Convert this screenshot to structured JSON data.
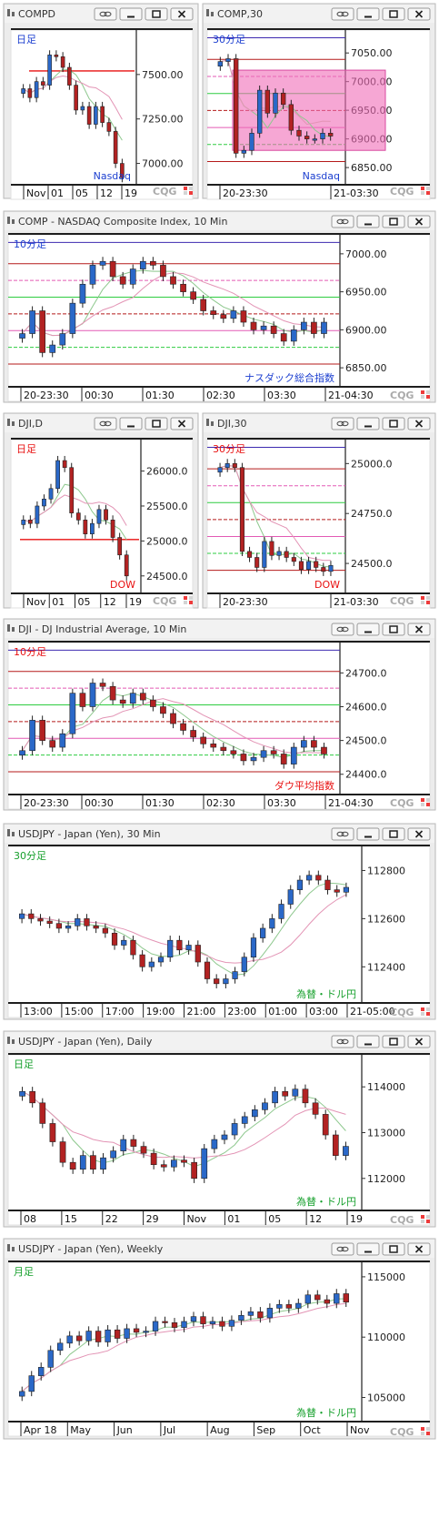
{
  "icons": {
    "link": "link-icon",
    "minimize": "minimize-icon",
    "maximize": "maximize-icon",
    "close": "close-icon"
  },
  "colors": {
    "up": "#2a68c8",
    "down": "#b22222",
    "frame": "#1e1e1e",
    "titlebar": "#ececec",
    "accent_blue": "#1c3fd0",
    "accent_red": "#e81010",
    "accent_green": "#17a02d",
    "zone_pink": "#f06cb8"
  },
  "footer_brand": "CQG",
  "windows": [
    {
      "title": "COMPD",
      "period_label": "日足",
      "name_label": "Nasdaq",
      "label_color": "#1c3fd0",
      "price_ticks": [
        "7500.00",
        "7250.00",
        "7000.00"
      ],
      "x_ticks": [
        "Nov",
        "01",
        "05",
        "12",
        "19"
      ],
      "chart_data": {
        "type": "candlestick",
        "ylim": [
          6880,
          7750
        ],
        "close": [
          7420,
          7370,
          7460,
          7440,
          7610,
          7600,
          7540,
          7440,
          7300,
          7320,
          7220,
          7320,
          7230,
          7180,
          7000,
          6920
        ]
      }
    },
    {
      "title": "COMP,30",
      "period_label": "30分足",
      "name_label": "Nasdaq",
      "label_color": "#1c3fd0",
      "price_ticks": [
        "7050.00",
        "7000.00",
        "6950.00",
        "6900.00",
        "6850.00"
      ],
      "x_ticks": [
        "20-23:30",
        "21-03:30"
      ],
      "chart_data": {
        "type": "candlestick",
        "ylim": [
          6820,
          7090
        ],
        "close": [
          7035,
          7040,
          6875,
          6880,
          6910,
          6985,
          6945,
          6980,
          6960,
          6915,
          6905,
          6900,
          6900,
          6910,
          6905
        ]
      }
    },
    {
      "title": "COMP - NASDAQ Composite Index, 10 Min",
      "period_label": "10分足",
      "name_label": "ナスダック総合指数",
      "label_color": "#1c3fd0",
      "price_ticks": [
        "7000.00",
        "6950.00",
        "6900.00",
        "6850.00"
      ],
      "x_ticks": [
        "20-23:30",
        "00:30",
        "01:30",
        "02:30",
        "03:30",
        "21-04:30"
      ],
      "chart_data": {
        "type": "candlestick",
        "ylim": [
          6825,
          7025
        ],
        "close": [
          6895,
          6925,
          6870,
          6880,
          6895,
          6935,
          6960,
          6985,
          6990,
          6970,
          6960,
          6980,
          6990,
          6985,
          6970,
          6960,
          6950,
          6940,
          6925,
          6920,
          6915,
          6925,
          6910,
          6900,
          6905,
          6895,
          6885,
          6900,
          6910,
          6895,
          6910
        ]
      }
    },
    {
      "title": "DJI,D",
      "period_label": "日足",
      "name_label": "DOW",
      "label_color": "#e81010",
      "price_ticks": [
        "26000.0",
        "25500.0",
        "25000.0",
        "24500.0"
      ],
      "x_ticks": [
        "Nov",
        "01",
        "05",
        "12",
        "19"
      ],
      "chart_data": {
        "type": "candlestick",
        "ylim": [
          24250,
          26450
        ],
        "close": [
          25300,
          25250,
          25500,
          25600,
          25750,
          26150,
          26050,
          25400,
          25300,
          25100,
          25250,
          25450,
          25300,
          25050,
          24800,
          24500
        ]
      }
    },
    {
      "title": "DJI,30",
      "period_label": "30分足",
      "name_label": "DOW",
      "label_color": "#e81010",
      "price_ticks": [
        "25000.0",
        "24750.0",
        "24500.0"
      ],
      "x_ticks": [
        "20-23:30",
        "21-03:30"
      ],
      "chart_data": {
        "type": "candlestick",
        "ylim": [
          24350,
          25120
        ],
        "close": [
          24980,
          25000,
          24980,
          24560,
          24530,
          24480,
          24610,
          24540,
          24560,
          24530,
          24510,
          24470,
          24510,
          24480,
          24460,
          24490
        ]
      }
    },
    {
      "title": "DJI - DJ Industrial Average, 10 Min",
      "period_label": "10分足",
      "name_label": "ダウ平均指数",
      "label_color": "#e81010",
      "price_ticks": [
        "24700.0",
        "24600.0",
        "24500.0",
        "24400.0"
      ],
      "x_ticks": [
        "20-23:30",
        "00:30",
        "01:30",
        "02:30",
        "03:30",
        "21-04:30"
      ],
      "chart_data": {
        "type": "candlestick",
        "ylim": [
          24340,
          24790
        ],
        "close": [
          24470,
          24560,
          24500,
          24480,
          24520,
          24640,
          24600,
          24670,
          24660,
          24620,
          24610,
          24640,
          24620,
          24600,
          24580,
          24550,
          24530,
          24510,
          24490,
          24480,
          24470,
          24460,
          24440,
          24450,
          24470,
          24460,
          24430,
          24480,
          24500,
          24480,
          24460
        ]
      }
    },
    {
      "title": "USDJPY - Japan (Yen), 30 Min",
      "period_label": "30分足",
      "name_label": "為替・ドル円",
      "label_color": "#17a02d",
      "price_ticks": [
        "112800",
        "112600",
        "112400"
      ],
      "x_ticks": [
        "13:00",
        "15:00",
        "17:00",
        "19:00",
        "21:00",
        "23:00",
        "01:00",
        "03:00",
        "21-05:00"
      ],
      "chart_data": {
        "type": "candlestick",
        "ylim": [
          112250,
          112900
        ],
        "close": [
          112620,
          112600,
          112590,
          112580,
          112560,
          112570,
          112600,
          112570,
          112560,
          112540,
          112490,
          112510,
          112450,
          112400,
          112420,
          112440,
          112510,
          112470,
          112490,
          112420,
          112350,
          112330,
          112350,
          112380,
          112440,
          112520,
          112560,
          112600,
          112660,
          112720,
          112760,
          112780,
          112760,
          112720,
          112710,
          112730
        ]
      }
    },
    {
      "title": "USDJPY - Japan (Yen), Daily",
      "period_label": "日足",
      "name_label": "為替・ドル円",
      "label_color": "#17a02d",
      "price_ticks": [
        "114000",
        "113000",
        "112000"
      ],
      "x_ticks": [
        "08",
        "15",
        "22",
        "29",
        "Nov",
        "01",
        "05",
        "12",
        "19"
      ],
      "chart_data": {
        "type": "candlestick",
        "ylim": [
          111300,
          114700
        ],
        "close": [
          113900,
          113650,
          113200,
          112800,
          112350,
          112200,
          112500,
          112200,
          112450,
          112600,
          112850,
          112700,
          112550,
          112300,
          112250,
          112400,
          112350,
          112000,
          112650,
          112850,
          112950,
          113200,
          113350,
          113500,
          113650,
          113900,
          113800,
          113950,
          113650,
          113400,
          112950,
          112500,
          112700
        ]
      }
    },
    {
      "title": "USDJPY - Japan (Yen), Weekly",
      "period_label": "月足",
      "name_label": "為替・ドル円",
      "label_color": "#17a02d",
      "price_ticks": [
        "115000",
        "110000",
        "105000"
      ],
      "x_ticks": [
        "Apr 18",
        "May",
        "Jun",
        "Jul",
        "Aug",
        "Sep",
        "Oct",
        "Nov"
      ],
      "chart_data": {
        "type": "candlestick",
        "ylim": [
          103000,
          116200
        ],
        "close": [
          105500,
          106800,
          107500,
          108900,
          109500,
          110100,
          109700,
          110500,
          109600,
          110600,
          109900,
          110700,
          110400,
          110500,
          111300,
          111200,
          110800,
          111300,
          111700,
          111100,
          111300,
          110900,
          111400,
          111800,
          112100,
          111600,
          112400,
          112700,
          112400,
          112800,
          113500,
          113100,
          112800,
          113600,
          112900
        ]
      }
    }
  ]
}
